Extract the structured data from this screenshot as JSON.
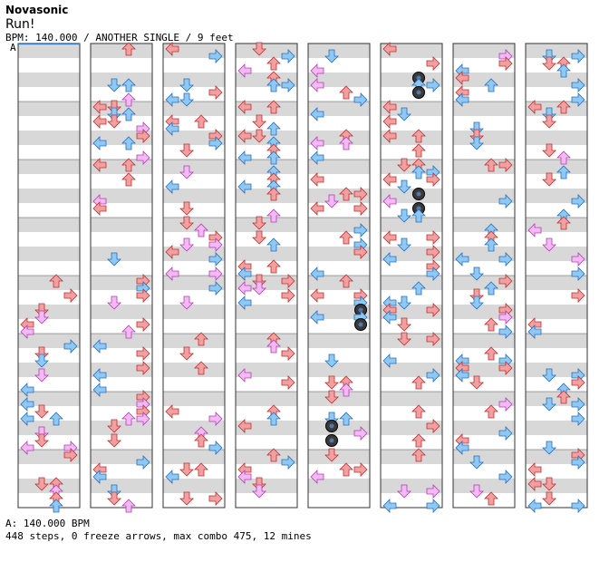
{
  "header": {
    "artist": "Novasonic",
    "title": "Run!",
    "info": "BPM: 140.000 / ANOTHER SINGLE / 9 feet",
    "bpm_marker": "A"
  },
  "footer": {
    "bpm_line": "A: 140.000 BPM",
    "stats_line": "448 steps, 0 freeze arrows, max combo 475, 12 mines"
  },
  "colors": {
    "arrow_red": "#f0a0a0",
    "arrow_red_edge": "#c03030",
    "arrow_blue": "#8ec8f4",
    "arrow_blue_edge": "#2870b8",
    "arrow_pink": "#f4b8f4",
    "arrow_pink_edge": "#b040b0",
    "mine": "#3a3a3a",
    "stripe": "#d8d8d8"
  },
  "chart": {
    "column_count": 8,
    "measures_per_column": 8,
    "mine_icon": "mine-icon"
  }
}
